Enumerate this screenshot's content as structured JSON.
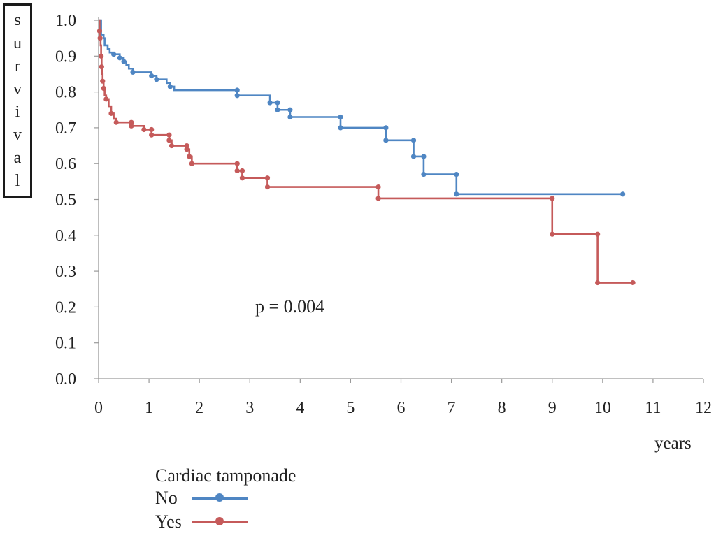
{
  "chart_data": {
    "type": "line",
    "ylabel": "survival",
    "xlabel": "years",
    "xlim": [
      0,
      12
    ],
    "ylim": [
      0,
      1.0
    ],
    "x_ticks": [
      "0",
      "1",
      "2",
      "3",
      "4",
      "5",
      "6",
      "7",
      "8",
      "9",
      "10",
      "11",
      "12"
    ],
    "y_ticks": [
      "0.0",
      "0.1",
      "0.2",
      "0.3",
      "0.4",
      "0.5",
      "0.6",
      "0.7",
      "0.8",
      "0.9",
      "1.0"
    ],
    "annotation": "p = 0.004",
    "legend_title": "Cardiac tamponade",
    "legend_position": "bottom-left",
    "grid": false,
    "series": [
      {
        "name": "No",
        "color": "#4f86c3",
        "steps": [
          [
            0,
            1.0
          ],
          [
            0.05,
            0.96
          ],
          [
            0.1,
            0.95
          ],
          [
            0.12,
            0.93
          ],
          [
            0.18,
            0.92
          ],
          [
            0.22,
            0.91
          ],
          [
            0.3,
            0.905
          ],
          [
            0.42,
            0.895
          ],
          [
            0.5,
            0.885
          ],
          [
            0.55,
            0.875
          ],
          [
            0.6,
            0.865
          ],
          [
            0.68,
            0.855
          ],
          [
            1.05,
            0.845
          ],
          [
            1.15,
            0.835
          ],
          [
            1.35,
            0.825
          ],
          [
            1.42,
            0.815
          ],
          [
            1.5,
            0.805
          ],
          [
            2.75,
            0.79
          ],
          [
            3.4,
            0.77
          ],
          [
            3.55,
            0.75
          ],
          [
            3.8,
            0.73
          ],
          [
            4.8,
            0.7
          ],
          [
            5.7,
            0.665
          ],
          [
            6.25,
            0.62
          ],
          [
            6.45,
            0.57
          ],
          [
            7.1,
            0.515
          ]
        ],
        "end_x": 10.4,
        "censored": [
          [
            0.3,
            0.905
          ],
          [
            0.42,
            0.895
          ],
          [
            0.5,
            0.885
          ],
          [
            0.68,
            0.855
          ],
          [
            1.05,
            0.845
          ],
          [
            1.15,
            0.835
          ],
          [
            1.42,
            0.815
          ],
          [
            2.75,
            0.79
          ],
          [
            2.75,
            0.805
          ],
          [
            3.4,
            0.77
          ],
          [
            3.55,
            0.75
          ],
          [
            3.55,
            0.77
          ],
          [
            3.8,
            0.73
          ],
          [
            3.8,
            0.75
          ],
          [
            4.8,
            0.7
          ],
          [
            4.8,
            0.73
          ],
          [
            5.7,
            0.665
          ],
          [
            5.7,
            0.7
          ],
          [
            6.25,
            0.62
          ],
          [
            6.25,
            0.665
          ],
          [
            6.45,
            0.57
          ],
          [
            6.45,
            0.62
          ],
          [
            7.1,
            0.515
          ],
          [
            7.1,
            0.57
          ],
          [
            10.4,
            0.515
          ]
        ]
      },
      {
        "name": "Yes",
        "color": "#c55a5a",
        "steps": [
          [
            0,
            1.0
          ],
          [
            0.02,
            0.97
          ],
          [
            0.03,
            0.95
          ],
          [
            0.04,
            0.93
          ],
          [
            0.05,
            0.9
          ],
          [
            0.06,
            0.87
          ],
          [
            0.07,
            0.85
          ],
          [
            0.08,
            0.83
          ],
          [
            0.1,
            0.81
          ],
          [
            0.12,
            0.79
          ],
          [
            0.15,
            0.78
          ],
          [
            0.2,
            0.76
          ],
          [
            0.25,
            0.74
          ],
          [
            0.3,
            0.725
          ],
          [
            0.35,
            0.715
          ],
          [
            0.65,
            0.705
          ],
          [
            0.9,
            0.695
          ],
          [
            1.05,
            0.68
          ],
          [
            1.4,
            0.665
          ],
          [
            1.45,
            0.65
          ],
          [
            1.75,
            0.64
          ],
          [
            1.8,
            0.62
          ],
          [
            1.85,
            0.6
          ],
          [
            2.75,
            0.58
          ],
          [
            2.85,
            0.56
          ],
          [
            3.35,
            0.535
          ],
          [
            5.55,
            0.503
          ],
          [
            9.0,
            0.403
          ],
          [
            9.9,
            0.268
          ]
        ],
        "end_x": 10.6,
        "censored": [
          [
            0.02,
            0.97
          ],
          [
            0.03,
            0.95
          ],
          [
            0.05,
            0.9
          ],
          [
            0.06,
            0.87
          ],
          [
            0.08,
            0.83
          ],
          [
            0.1,
            0.81
          ],
          [
            0.15,
            0.78
          ],
          [
            0.25,
            0.74
          ],
          [
            0.35,
            0.715
          ],
          [
            0.65,
            0.715
          ],
          [
            0.65,
            0.705
          ],
          [
            0.9,
            0.695
          ],
          [
            1.05,
            0.68
          ],
          [
            1.05,
            0.695
          ],
          [
            1.4,
            0.665
          ],
          [
            1.4,
            0.68
          ],
          [
            1.45,
            0.65
          ],
          [
            1.75,
            0.64
          ],
          [
            1.75,
            0.65
          ],
          [
            1.8,
            0.62
          ],
          [
            1.85,
            0.6
          ],
          [
            2.75,
            0.58
          ],
          [
            2.75,
            0.6
          ],
          [
            2.85,
            0.56
          ],
          [
            2.85,
            0.58
          ],
          [
            3.35,
            0.535
          ],
          [
            3.35,
            0.56
          ],
          [
            5.55,
            0.503
          ],
          [
            5.55,
            0.535
          ],
          [
            9.0,
            0.403
          ],
          [
            9.0,
            0.503
          ],
          [
            9.9,
            0.268
          ],
          [
            9.9,
            0.403
          ],
          [
            10.6,
            0.268
          ]
        ]
      }
    ]
  }
}
